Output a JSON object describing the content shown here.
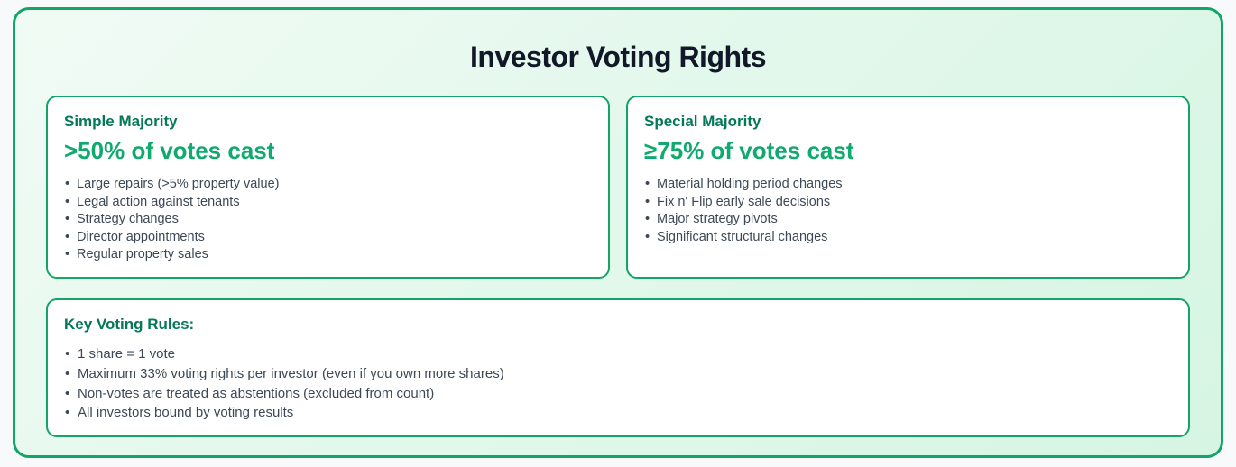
{
  "page": {
    "title": "Investor Voting Rights"
  },
  "cards": [
    {
      "heading": "Simple Majority",
      "threshold": ">50% of votes cast",
      "items": [
        "Large repairs (>5% property value)",
        "Legal action against tenants",
        "Strategy changes",
        "Director appointments",
        "Regular property sales"
      ]
    },
    {
      "heading": "Special Majority",
      "threshold": "≥75% of votes cast",
      "items": [
        "Material holding period changes",
        "Fix n' Flip early sale decisions",
        "Major strategy pivots",
        "Significant structural changes"
      ]
    }
  ],
  "rules": {
    "heading": "Key Voting Rules:",
    "items": [
      "1 share = 1 vote",
      "Maximum 33% voting rights per investor (even if you own more shares)",
      "Non-votes are treated as abstentions (excluded from count)",
      "All investors bound by voting results"
    ]
  },
  "colors": {
    "accent_border_green": "#13a468",
    "heading_dark_green": "#047857",
    "threshold_green": "#10a96e",
    "title_color": "#111827",
    "body_text": "#3d4856",
    "frame_gradient_start": "#f1fbf5",
    "frame_gradient_end": "#d6f5e2",
    "page_background": "#f8f9fa",
    "card_background": "#ffffff"
  }
}
